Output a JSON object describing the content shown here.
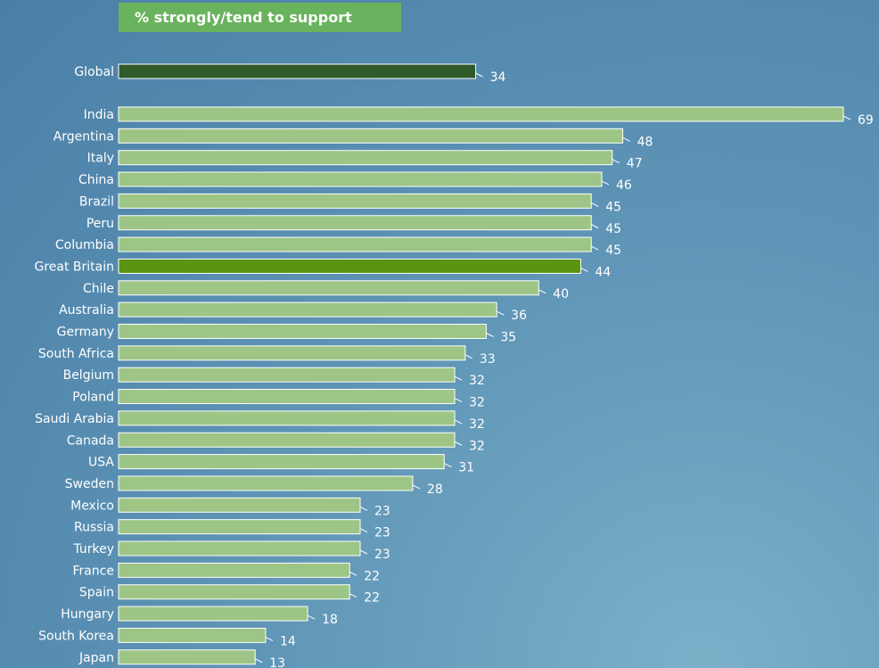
{
  "chart_data": {
    "type": "bar",
    "orientation": "horizontal",
    "title": "% strongly/tend to support",
    "xlabel": "",
    "ylabel": "",
    "xlim": [
      0,
      69
    ],
    "grid": false,
    "legend": "none",
    "categories": [
      "Global",
      "India",
      "Argentina",
      "Italy",
      "China",
      "Brazil",
      "Peru",
      "Columbia",
      "Great Britain",
      "Chile",
      "Australia",
      "Germany",
      "South Africa",
      "Belgium",
      "Poland",
      "Saudi Arabia",
      "Canada",
      "USA",
      "Sweden",
      "Mexico",
      "Russia",
      "Turkey",
      "France",
      "Spain",
      "Hungary",
      "South Korea",
      "Japan"
    ],
    "values": [
      34,
      69,
      48,
      47,
      46,
      45,
      45,
      45,
      44,
      40,
      36,
      35,
      33,
      32,
      32,
      32,
      32,
      31,
      28,
      23,
      23,
      23,
      22,
      22,
      18,
      14,
      13
    ],
    "highlight": {
      "Global": "#2f5a2a",
      "Great Britain": "#5a9410"
    }
  },
  "colors": {
    "bar": "#9dc585",
    "bar_outline": "#ffffff",
    "title_box": "#6ab35e"
  }
}
